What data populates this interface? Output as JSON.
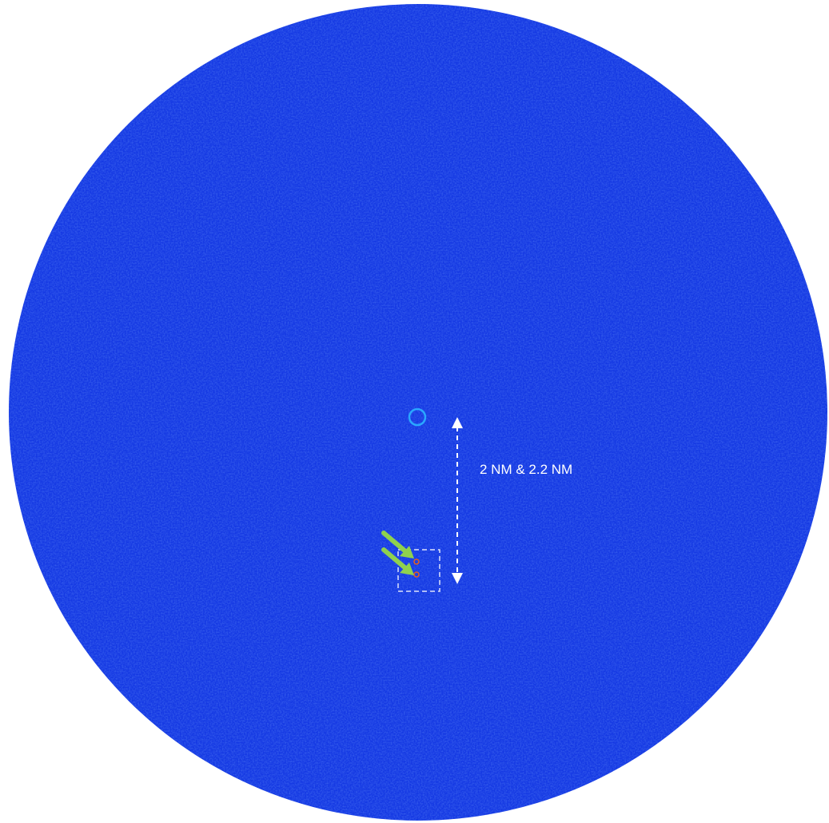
{
  "radar": {
    "label": "2 NM & 2.2 NM",
    "colors": {
      "background": "#ffffff",
      "scope": "#1539e3",
      "ownship_ring": "#2aa7ff",
      "annotation": "#ffffff",
      "target": "#e8601c",
      "pointer_arrow": "#8fd14f"
    },
    "icons": {
      "ownship": "ring-icon",
      "pointer": "arrow-icon",
      "range": "double-headed-arrow-icon"
    },
    "targets_count": 2
  }
}
